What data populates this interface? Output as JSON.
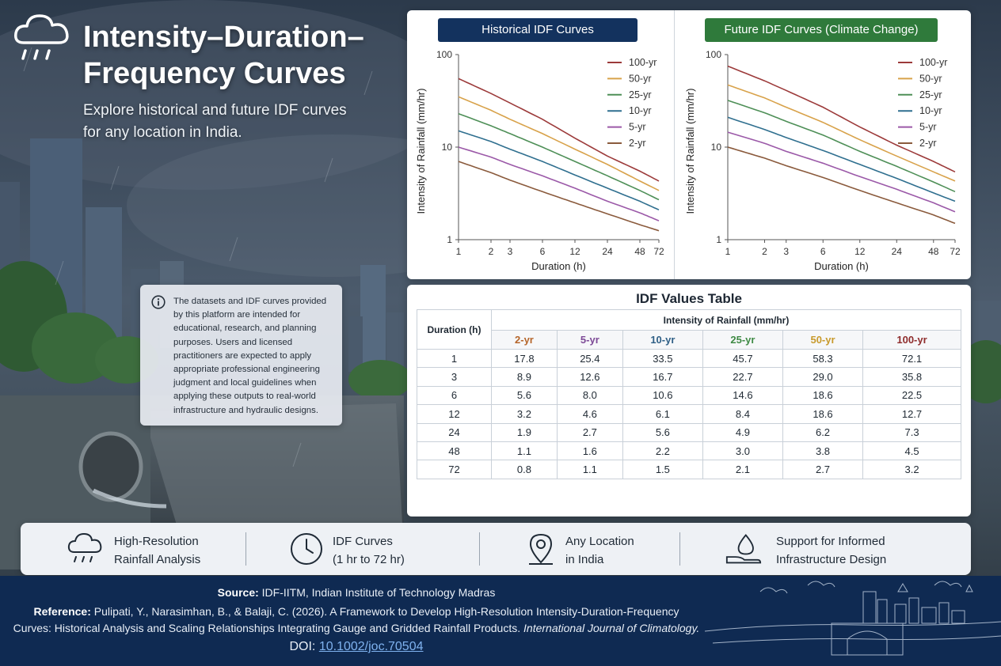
{
  "header": {
    "title_line1": "Intensity–Duration–",
    "title_line2": "Frequency Curves",
    "subtitle_line1": "Explore historical and future IDF curves",
    "subtitle_line2": "for any location in India.",
    "icon": "rain-cloud-icon"
  },
  "disclaimer": {
    "icon": "info-icon",
    "text": "The datasets and IDF curves provided by this platform are intended for educational, research, and planning purposes. Users and licensed practitioners are expected to apply appropriate professional engineering judgment and local guidelines when applying these outputs to real-world infrastructure and hydraulic designs."
  },
  "chart_data": [
    {
      "type": "line",
      "title": "Historical IDF Curves",
      "xlabel": "Duration (h)",
      "ylabel": "Intensity of Rainfall (mm/hr)",
      "xscale": "log",
      "yscale": "log",
      "x": [
        1,
        2,
        3,
        6,
        12,
        24,
        48,
        72
      ],
      "x_ticks": [
        "1",
        "2",
        "3",
        "6",
        "12",
        "24",
        "48",
        "72"
      ],
      "y_ticks": [
        "1",
        "10",
        "100"
      ],
      "ylim": [
        1,
        100
      ],
      "legend_position": "top-right",
      "series": [
        {
          "name": "100-yr",
          "color": "#9c3a3a",
          "values": [
            55,
            38,
            30,
            20,
            12.5,
            8,
            5.5,
            4.3
          ]
        },
        {
          "name": "50-yr",
          "color": "#d8a24a",
          "values": [
            35,
            25,
            20,
            14,
            9.5,
            6.5,
            4.3,
            3.4
          ]
        },
        {
          "name": "25-yr",
          "color": "#4e8f57",
          "values": [
            23,
            17,
            14,
            10,
            7,
            4.9,
            3.4,
            2.7
          ]
        },
        {
          "name": "10-yr",
          "color": "#2f6f8f",
          "values": [
            15,
            11.5,
            9.5,
            7,
            5,
            3.6,
            2.6,
            2.1
          ]
        },
        {
          "name": "5-yr",
          "color": "#9b59a8",
          "values": [
            10,
            7.8,
            6.5,
            4.9,
            3.6,
            2.6,
            1.95,
            1.6
          ]
        },
        {
          "name": "2-yr",
          "color": "#8a5a3c",
          "values": [
            7,
            5.3,
            4.4,
            3.3,
            2.5,
            1.9,
            1.45,
            1.25
          ]
        }
      ]
    },
    {
      "type": "line",
      "title": "Future IDF Curves (Climate Change)",
      "xlabel": "Duration (h)",
      "ylabel": "Intensity of Rainfall (mm/hr)",
      "xscale": "log",
      "yscale": "log",
      "x": [
        1,
        2,
        3,
        6,
        12,
        24,
        48,
        72
      ],
      "x_ticks": [
        "1",
        "2",
        "3",
        "6",
        "12",
        "24",
        "48",
        "72"
      ],
      "y_ticks": [
        "1",
        "10",
        "100"
      ],
      "ylim": [
        1,
        100
      ],
      "legend_position": "top-right",
      "series": [
        {
          "name": "100-yr",
          "color": "#9c3a3a",
          "values": [
            75,
            52,
            41,
            27,
            16.5,
            10.5,
            7,
            5.4
          ]
        },
        {
          "name": "50-yr",
          "color": "#d8a24a",
          "values": [
            47,
            34,
            27,
            18.5,
            12,
            8,
            5.4,
            4.3
          ]
        },
        {
          "name": "25-yr",
          "color": "#4e8f57",
          "values": [
            32,
            23.5,
            19,
            13.5,
            9,
            6.2,
            4.2,
            3.3
          ]
        },
        {
          "name": "10-yr",
          "color": "#2f6f8f",
          "values": [
            21,
            15.5,
            12.7,
            9.2,
            6.5,
            4.6,
            3.2,
            2.6
          ]
        },
        {
          "name": "5-yr",
          "color": "#9b59a8",
          "values": [
            14.5,
            11,
            9,
            6.7,
            4.8,
            3.5,
            2.5,
            2
          ]
        },
        {
          "name": "2-yr",
          "color": "#8a5a3c",
          "values": [
            10,
            7.6,
            6.3,
            4.7,
            3.4,
            2.5,
            1.85,
            1.5
          ]
        }
      ]
    }
  ],
  "table": {
    "title": "IDF Values Table",
    "duration_header": "Duration (h)",
    "intensity_header": "Intensity of Rainfall (mm/hr)",
    "return_periods": [
      {
        "label": "2-yr",
        "color": "#b5652a"
      },
      {
        "label": "5-yr",
        "color": "#7d4a97"
      },
      {
        "label": "10-yr",
        "color": "#2f5f86"
      },
      {
        "label": "25-yr",
        "color": "#3f8a45"
      },
      {
        "label": "50-yr",
        "color": "#c89a2c"
      },
      {
        "label": "100-yr",
        "color": "#8f2d2d"
      }
    ],
    "rows": [
      {
        "duration": "1",
        "values": [
          "17.8",
          "25.4",
          "33.5",
          "45.7",
          "58.3",
          "72.1"
        ]
      },
      {
        "duration": "3",
        "values": [
          "8.9",
          "12.6",
          "16.7",
          "22.7",
          "29.0",
          "35.8"
        ]
      },
      {
        "duration": "6",
        "values": [
          "5.6",
          "8.0",
          "10.6",
          "14.6",
          "18.6",
          "22.5"
        ]
      },
      {
        "duration": "12",
        "values": [
          "3.2",
          "4.6",
          "6.1",
          "8.4",
          "18.6",
          "12.7"
        ]
      },
      {
        "duration": "24",
        "values": [
          "1.9",
          "2.7",
          "5.6",
          "4.9",
          "6.2",
          "7.3"
        ]
      },
      {
        "duration": "48",
        "values": [
          "1.1",
          "1.6",
          "2.2",
          "3.0",
          "3.8",
          "4.5"
        ]
      },
      {
        "duration": "72",
        "values": [
          "0.8",
          "1.1",
          "1.5",
          "2.1",
          "2.7",
          "3.2"
        ]
      }
    ]
  },
  "features": [
    {
      "icon": "rain-cloud-icon",
      "line1": "High-Resolution",
      "line2": "Rainfall Analysis"
    },
    {
      "icon": "clock-icon",
      "line1": "IDF Curves",
      "line2": "(1 hr to 72 hr)"
    },
    {
      "icon": "location-pin-icon",
      "line1": "Any Location",
      "line2": "in India"
    },
    {
      "icon": "water-drop-hand-icon",
      "line1": "Support for Informed",
      "line2": "Infrastructure Design"
    }
  ],
  "footer": {
    "source_label": "Source:",
    "source_text": " IDF-IITM, Indian Institute of Technology Madras",
    "reference_label": "Reference:",
    "reference_line1": " Pulipati, Y., Narasimhan, B., & Balaji, C. (2026). A Framework to Develop High-Resolution Intensity-Duration-Frequency",
    "reference_line2": "Curves: Historical Analysis and Scaling Relationships Integrating Gauge and Gridded Rainfall Products. ",
    "journal": "International Journal of Climatology.",
    "doi_label": "DOI: ",
    "doi_link": "10.1002/joc.70504"
  }
}
